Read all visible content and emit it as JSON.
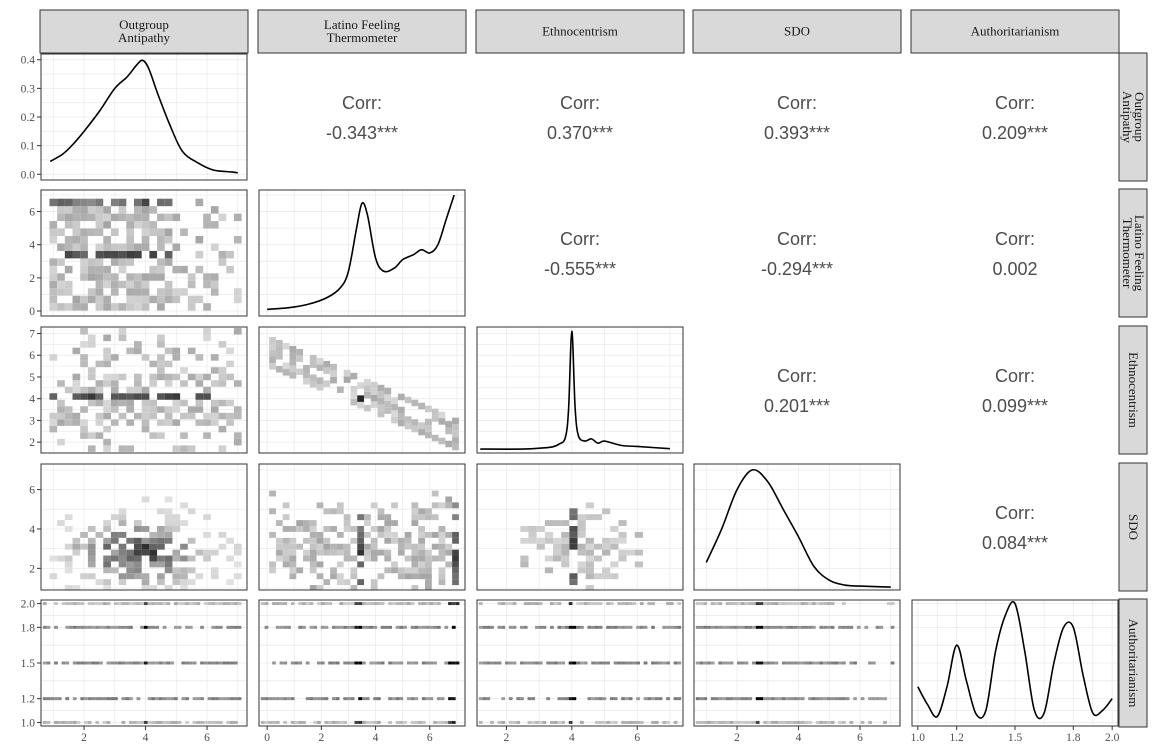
{
  "chart_data": {
    "type": "scatterplot-matrix",
    "variables": [
      "Outgroup Antipathy",
      "Latino Feeling Thermometer",
      "Ethnocentrism",
      "SDO",
      "Authoritarianism"
    ],
    "column_strips": [
      [
        "Outgroup",
        "Antipathy"
      ],
      [
        "Latino Feeling",
        "Thermometer"
      ],
      [
        "Ethnocentrism"
      ],
      [
        "SDO"
      ],
      [
        "Authoritarianism"
      ]
    ],
    "row_strips": [
      [
        "Outgroup",
        "Antipathy"
      ],
      [
        "Latino Feeling",
        "Thermometer"
      ],
      [
        "Ethnocentrism"
      ],
      [
        "SDO"
      ],
      [
        "Authoritarianism"
      ]
    ],
    "correlations": [
      {
        "row": 0,
        "col": 1,
        "label": "Corr:",
        "value": "-0.343***"
      },
      {
        "row": 0,
        "col": 2,
        "label": "Corr:",
        "value": "0.370***"
      },
      {
        "row": 0,
        "col": 3,
        "label": "Corr:",
        "value": "0.393***"
      },
      {
        "row": 0,
        "col": 4,
        "label": "Corr:",
        "value": "0.209***"
      },
      {
        "row": 1,
        "col": 2,
        "label": "Corr:",
        "value": "-0.555***"
      },
      {
        "row": 1,
        "col": 3,
        "label": "Corr:",
        "value": "-0.294***"
      },
      {
        "row": 1,
        "col": 4,
        "label": "Corr:",
        "value": "0.002"
      },
      {
        "row": 2,
        "col": 3,
        "label": "Corr:",
        "value": "0.201***"
      },
      {
        "row": 2,
        "col": 4,
        "label": "Corr:",
        "value": "0.099***"
      },
      {
        "row": 3,
        "col": 4,
        "label": "Corr:",
        "value": "0.084***"
      }
    ],
    "x_axes": [
      {
        "range": [
          0.6,
          7.3
        ],
        "ticks": [
          2,
          4,
          6
        ],
        "tick_labels": [
          "2",
          "4",
          "6"
        ]
      },
      {
        "range": [
          -0.3,
          7.3
        ],
        "ticks": [
          0,
          2,
          4,
          6
        ],
        "tick_labels": [
          "0",
          "2",
          "4",
          "6"
        ]
      },
      {
        "range": [
          1.1,
          7.4
        ],
        "ticks": [
          2,
          4,
          6
        ],
        "tick_labels": [
          "2",
          "4",
          "6"
        ]
      },
      {
        "range": [
          0.6,
          7.3
        ],
        "ticks": [
          2,
          4,
          6
        ],
        "tick_labels": [
          "2",
          "4",
          "6"
        ]
      },
      {
        "range": [
          0.97,
          2.03
        ],
        "ticks": [
          1.0,
          1.2,
          1.5,
          1.8,
          2.0
        ],
        "tick_labels": [
          "1.0",
          "1.2",
          "1.5",
          "1.8",
          "2.0"
        ]
      }
    ],
    "y_axes": [
      {
        "range": [
          -0.02,
          0.42
        ],
        "ticks": [
          0.0,
          0.1,
          0.2,
          0.3,
          0.4
        ],
        "tick_labels": [
          "0.0",
          "0.1",
          "0.2",
          "0.3",
          "0.4"
        ]
      },
      {
        "range": [
          -0.3,
          7.3
        ],
        "ticks": [
          0,
          2,
          4,
          6
        ],
        "tick_labels": [
          "0",
          "2",
          "4",
          "6"
        ]
      },
      {
        "range": [
          1.5,
          7.3
        ],
        "ticks": [
          2,
          3,
          4,
          5,
          6,
          7
        ],
        "tick_labels": [
          "2",
          "3",
          "4",
          "5",
          "6",
          "7"
        ]
      },
      {
        "range": [
          0.9,
          7.3
        ],
        "ticks": [
          2,
          4,
          6
        ],
        "tick_labels": [
          "2",
          "4",
          "6"
        ]
      },
      {
        "range": [
          0.97,
          2.03
        ],
        "ticks": [
          1.0,
          1.2,
          1.5,
          1.8,
          2.0
        ],
        "tick_labels": [
          "1.0",
          "1.2",
          "1.5",
          "1.8",
          "2.0"
        ]
      }
    ],
    "densities": [
      {
        "variable": "Outgroup Antipathy",
        "x": [
          0.9,
          1.3,
          1.6,
          2.0,
          2.5,
          3.0,
          3.4,
          3.7,
          3.9,
          4.1,
          4.4,
          4.8,
          5.2,
          5.7,
          6.2,
          6.8,
          7.0
        ],
        "y": [
          0.045,
          0.07,
          0.1,
          0.15,
          0.22,
          0.3,
          0.34,
          0.38,
          0.398,
          0.37,
          0.28,
          0.17,
          0.08,
          0.04,
          0.015,
          0.008,
          0.005
        ]
      },
      {
        "variable": "Latino Feeling Thermometer",
        "x": [
          0.0,
          0.8,
          1.5,
          2.2,
          2.7,
          3.0,
          3.3,
          3.5,
          3.7,
          4.0,
          4.3,
          4.7,
          5.0,
          5.4,
          5.7,
          6.0,
          6.3,
          6.6,
          6.9
        ],
        "y": [
          0.1,
          0.2,
          0.4,
          0.8,
          1.4,
          2.4,
          5.0,
          6.5,
          5.8,
          3.2,
          2.4,
          2.6,
          3.1,
          3.4,
          3.7,
          3.5,
          4.0,
          5.5,
          7.0
        ]
      },
      {
        "variable": "Ethnocentrism",
        "x": [
          1.2,
          2.5,
          3.0,
          3.4,
          3.6,
          3.8,
          3.9,
          4.0,
          4.1,
          4.2,
          4.4,
          4.6,
          4.8,
          5.0,
          5.5,
          6.0,
          7.0
        ],
        "y": [
          1.68,
          1.68,
          1.72,
          1.78,
          1.9,
          2.2,
          3.5,
          7.1,
          3.6,
          2.3,
          2.05,
          2.15,
          1.95,
          2.05,
          1.85,
          1.8,
          1.7
        ]
      },
      {
        "variable": "SDO",
        "x": [
          1.0,
          1.5,
          2.0,
          2.5,
          3.0,
          3.5,
          4.0,
          4.5,
          5.0,
          5.5,
          6.0,
          7.0
        ],
        "y": [
          2.3,
          4.0,
          6.0,
          7.0,
          6.4,
          5.0,
          3.6,
          2.1,
          1.4,
          1.15,
          1.1,
          1.05
        ]
      },
      {
        "variable": "Authoritarianism",
        "x": [
          1.0,
          1.05,
          1.1,
          1.15,
          1.2,
          1.25,
          1.3,
          1.35,
          1.4,
          1.45,
          1.5,
          1.55,
          1.6,
          1.65,
          1.7,
          1.75,
          1.8,
          1.85,
          1.9,
          1.95,
          2.0
        ],
        "y": [
          1.3,
          1.15,
          1.05,
          1.3,
          1.65,
          1.35,
          1.07,
          1.1,
          1.6,
          1.9,
          2.0,
          1.6,
          1.1,
          1.08,
          1.5,
          1.8,
          1.8,
          1.4,
          1.08,
          1.1,
          1.2
        ]
      }
    ],
    "heatmaps": [
      {
        "row": 1,
        "col": 0,
        "x_var": "Outgroup Antipathy",
        "y_var": "Latino Feeling Thermometer"
      },
      {
        "row": 2,
        "col": 0,
        "x_var": "Outgroup Antipathy",
        "y_var": "Ethnocentrism"
      },
      {
        "row": 2,
        "col": 1,
        "x_var": "Latino Feeling Thermometer",
        "y_var": "Ethnocentrism"
      },
      {
        "row": 3,
        "col": 0,
        "x_var": "Outgroup Antipathy",
        "y_var": "SDO"
      },
      {
        "row": 3,
        "col": 1,
        "x_var": "Latino Feeling Thermometer",
        "y_var": "SDO"
      },
      {
        "row": 3,
        "col": 2,
        "x_var": "Ethnocentrism",
        "y_var": "SDO"
      },
      {
        "row": 4,
        "col": 0,
        "x_var": "Outgroup Antipathy",
        "y_var": "Authoritarianism"
      },
      {
        "row": 4,
        "col": 1,
        "x_var": "Latino Feeling Thermometer",
        "y_var": "Authoritarianism"
      },
      {
        "row": 4,
        "col": 2,
        "x_var": "Ethnocentrism",
        "y_var": "Authoritarianism"
      },
      {
        "row": 4,
        "col": 3,
        "x_var": "SDO",
        "y_var": "Authoritarianism"
      }
    ],
    "colors": {
      "strip_fill": "#d9d9d9",
      "panel_border": "#333333",
      "grid": "#ebebeb",
      "density_line": "#000000",
      "corr_text": "#4d4d4d"
    },
    "grid": true
  }
}
